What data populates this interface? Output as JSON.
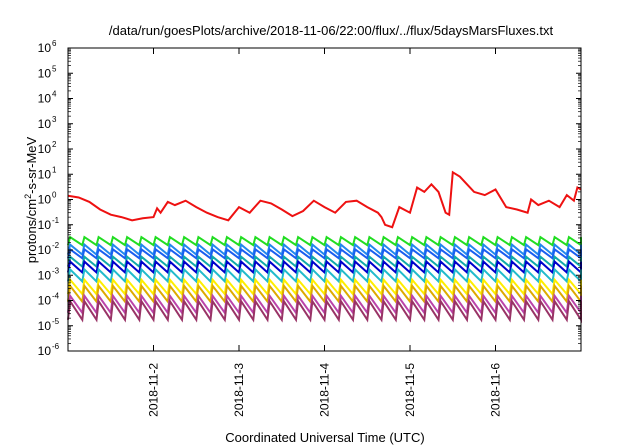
{
  "chart_data": {
    "type": "line",
    "title": "/data/run/goesPlots/archive/2018-11-06/22:00/flux/../flux/5daysMarsFluxes.txt",
    "xlabel": "Coordinated Universal Time (UTC)",
    "ylabel": {
      "prefix": "protons/cm",
      "exponent": "2",
      "suffix": "-s-sr-MeV"
    },
    "y_scale": "log",
    "ylim": [
      1e-06,
      1000000.0
    ],
    "xlim": [
      "2018-11-01T00:00",
      "2018-11-07T00:00"
    ],
    "y_ticks": [
      {
        "base": "10",
        "exp": "-6",
        "value": 1e-06
      },
      {
        "base": "10",
        "exp": "-5",
        "value": 1e-05
      },
      {
        "base": "10",
        "exp": "-4",
        "value": 0.0001
      },
      {
        "base": "10",
        "exp": "-3",
        "value": 0.001
      },
      {
        "base": "10",
        "exp": "-2",
        "value": 0.01
      },
      {
        "base": "10",
        "exp": "-1",
        "value": 0.1
      },
      {
        "base": "10",
        "exp": "0",
        "value": 1
      },
      {
        "base": "10",
        "exp": "1",
        "value": 10
      },
      {
        "base": "10",
        "exp": "2",
        "value": 100
      },
      {
        "base": "10",
        "exp": "3",
        "value": 1000
      },
      {
        "base": "10",
        "exp": "4",
        "value": 10000
      },
      {
        "base": "10",
        "exp": "5",
        "value": 100000
      },
      {
        "base": "10",
        "exp": "6",
        "value": 1000000
      }
    ],
    "x_ticks": [
      {
        "label": "2018-11-2",
        "value": "2018-11-02T00:00"
      },
      {
        "label": "2018-11-3",
        "value": "2018-11-03T00:00"
      },
      {
        "label": "2018-11-4",
        "value": "2018-11-04T00:00"
      },
      {
        "label": "2018-11-5",
        "value": "2018-11-05T00:00"
      },
      {
        "label": "2018-11-6",
        "value": "2018-11-06T00:00"
      }
    ],
    "grid": false,
    "legend": "none",
    "sawtooth_period_hours": 4,
    "series": [
      {
        "color": "#ee1111",
        "x": [
          "2018-11-01T00:00",
          "2018-11-01T03:00",
          "2018-11-01T06:00",
          "2018-11-01T09:00",
          "2018-11-01T12:00",
          "2018-11-01T15:00",
          "2018-11-01T18:00",
          "2018-11-01T21:00",
          "2018-11-02T00:00",
          "2018-11-02T01:00",
          "2018-11-02T02:00",
          "2018-11-02T04:00",
          "2018-11-02T06:00",
          "2018-11-02T09:00",
          "2018-11-02T12:00",
          "2018-11-02T15:00",
          "2018-11-02T18:00",
          "2018-11-02T21:00",
          "2018-11-03T00:00",
          "2018-11-03T03:00",
          "2018-11-03T06:00",
          "2018-11-03T09:00",
          "2018-11-03T12:00",
          "2018-11-03T15:00",
          "2018-11-03T18:00",
          "2018-11-03T21:00",
          "2018-11-04T00:00",
          "2018-11-04T03:00",
          "2018-11-04T06:00",
          "2018-11-04T09:00",
          "2018-11-04T12:00",
          "2018-11-04T15:00",
          "2018-11-04T16:00",
          "2018-11-04T17:00",
          "2018-11-04T19:00",
          "2018-11-04T21:00",
          "2018-11-05T00:00",
          "2018-11-05T02:00",
          "2018-11-05T04:00",
          "2018-11-05T06:00",
          "2018-11-05T08:00",
          "2018-11-05T10:00",
          "2018-11-05T11:00",
          "2018-11-05T12:00",
          "2018-11-05T14:00",
          "2018-11-05T16:00",
          "2018-11-05T18:00",
          "2018-11-05T21:00",
          "2018-11-06T00:00",
          "2018-11-06T03:00",
          "2018-11-06T06:00",
          "2018-11-06T09:00",
          "2018-11-06T10:00",
          "2018-11-06T12:00",
          "2018-11-06T15:00",
          "2018-11-06T18:00",
          "2018-11-06T20:00",
          "2018-11-06T22:00",
          "2018-11-06T23:00",
          "2018-11-07T00:00"
        ],
        "y": [
          1.4,
          1.2,
          0.8,
          0.4,
          0.25,
          0.2,
          0.15,
          0.18,
          0.2,
          0.45,
          0.3,
          0.8,
          0.6,
          0.9,
          0.5,
          0.3,
          0.2,
          0.15,
          0.5,
          0.3,
          0.9,
          0.7,
          0.4,
          0.22,
          0.35,
          0.9,
          0.5,
          0.3,
          0.8,
          0.9,
          0.5,
          0.3,
          0.2,
          0.1,
          0.08,
          0.5,
          0.3,
          3,
          2,
          4,
          2,
          0.3,
          0.25,
          12,
          8,
          4,
          2,
          1.5,
          2.5,
          0.5,
          0.4,
          0.3,
          1,
          0.6,
          0.9,
          0.5,
          1.5,
          0.9,
          3,
          2.5
        ]
      },
      {
        "color": "#22dd22",
        "base": 0.025,
        "amplitude": 0.5
      },
      {
        "color": "#2288ee",
        "base": 0.012,
        "amplitude": 0.6
      },
      {
        "color": "#1a5ff0",
        "base": 0.008,
        "amplitude": 0.55
      },
      {
        "color": "#11aaaa",
        "base": 0.004,
        "amplitude": 0.6
      },
      {
        "color": "#0000cc",
        "base": 0.0025,
        "amplitude": 0.65
      },
      {
        "color": "#22bbcc",
        "base": 0.0012,
        "amplitude": 0.7
      },
      {
        "color": "#ffee00",
        "base": 0.00045,
        "amplitude": 0.8
      },
      {
        "color": "#ddaa00",
        "base": 0.00025,
        "amplitude": 0.85
      },
      {
        "color": "#bb44aa",
        "base": 0.0001,
        "amplitude": 0.9
      },
      {
        "color": "#993366",
        "base": 6e-05,
        "amplitude": 0.95
      }
    ]
  }
}
